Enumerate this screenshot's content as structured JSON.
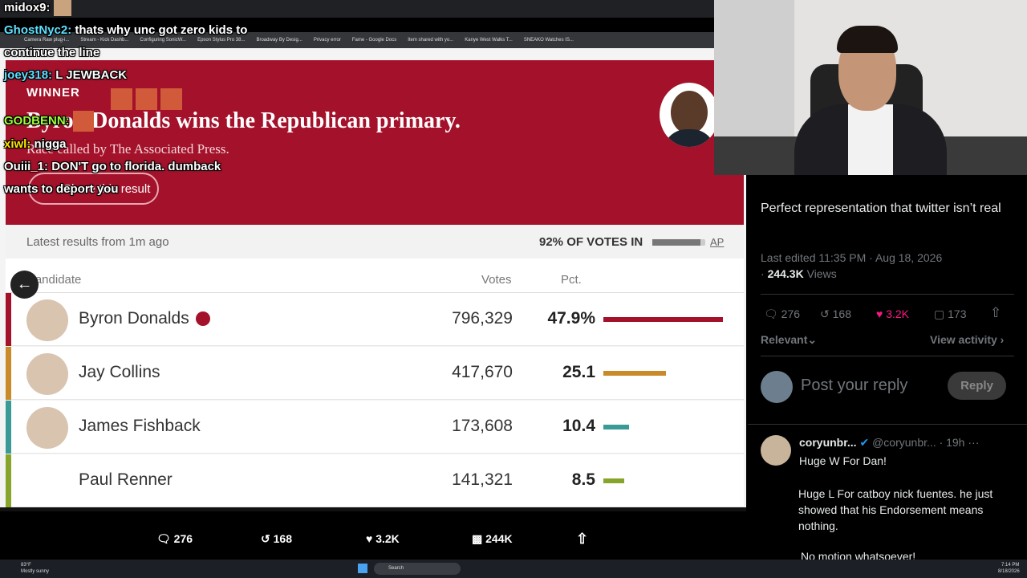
{
  "browser": {
    "bookmarks": [
      "Camera Raw plug-i...",
      "Stream - Kick Dashb...",
      "Configuring SonicW...",
      "Epson Stylus Pro 38...",
      "Broadway By Desig...",
      "Privacy error",
      "Fame - Google Docs",
      "Item shared with yo...",
      "Kanye West Walks T...",
      "SNEAKO Watches IS..."
    ]
  },
  "chat": [
    {
      "user": "midox9:"
    },
    {
      "user": "GhostNyc2:",
      "text": "thats why unc got zero kids to continue the line"
    },
    {
      "user": "joey318:",
      "text": "L JEWBACK"
    },
    {
      "user": "GODBENN:"
    },
    {
      "user": "xiwl:",
      "text": "nigga"
    },
    {
      "user": "Ouiii_1:",
      "text": "DON'T go to florida. dumback wants to deport you"
    }
  ],
  "results": {
    "winner": "WINNER",
    "headline": "Byron Donalds wins the Republican primary.",
    "called": "Race called by The Associated Press.",
    "share": "Share this result",
    "updated": "Latest results from 1m ago",
    "votes_in": "92% OF VOTES IN",
    "source": "AP",
    "columns": [
      "Candidate",
      "Votes",
      "Pct."
    ],
    "rows": [
      {
        "name": "Byron Donalds",
        "votes": "796,329",
        "pct": {
          "value": 47.9,
          "label": "47.9%"
        },
        "color": "#a3122a"
      },
      {
        "name": "Jay Collins",
        "votes": "417,670",
        "pct": 25.1,
        "color": "#c98a2a"
      },
      {
        "name": "James Fishback",
        "votes": "173,608",
        "pct": 10.4,
        "color": "#3a9a96"
      },
      {
        "name": "Paul Renner",
        "votes": "141,321",
        "pct": 8.5,
        "color": "#86a52a"
      }
    ]
  },
  "tweet": {
    "text": "Perfect representation that twitter isn’t real",
    "edited": "Last edited 11:35 PM · Aug 18, 2026",
    "views": "244.3K",
    "views_label": "Views",
    "replies": "276",
    "reposts": "168",
    "likes": "3.2K",
    "bookmarks": "173",
    "sort": "Relevant",
    "activity": "View activity",
    "reply_placeholder": "Post your reply",
    "reply_button": "Reply"
  },
  "reply": {
    "name": "coryunbr...",
    "handle": "@coryunbr...",
    "time": "· 19h",
    "lines": [
      "Huge W For Dan!",
      "Huge L For catboy nick fuentes. he just showed that his Endorsement means nothing.",
      "No motion whatsoever!"
    ]
  },
  "bottom_bar": {
    "replies": "276",
    "reposts": "168",
    "likes": "3.2K",
    "views": "244K"
  },
  "taskbar": {
    "weather": "83°F",
    "condition": "Mostly sunny",
    "search": "Search",
    "time": "7:14 PM",
    "date": "8/18/2026"
  }
}
